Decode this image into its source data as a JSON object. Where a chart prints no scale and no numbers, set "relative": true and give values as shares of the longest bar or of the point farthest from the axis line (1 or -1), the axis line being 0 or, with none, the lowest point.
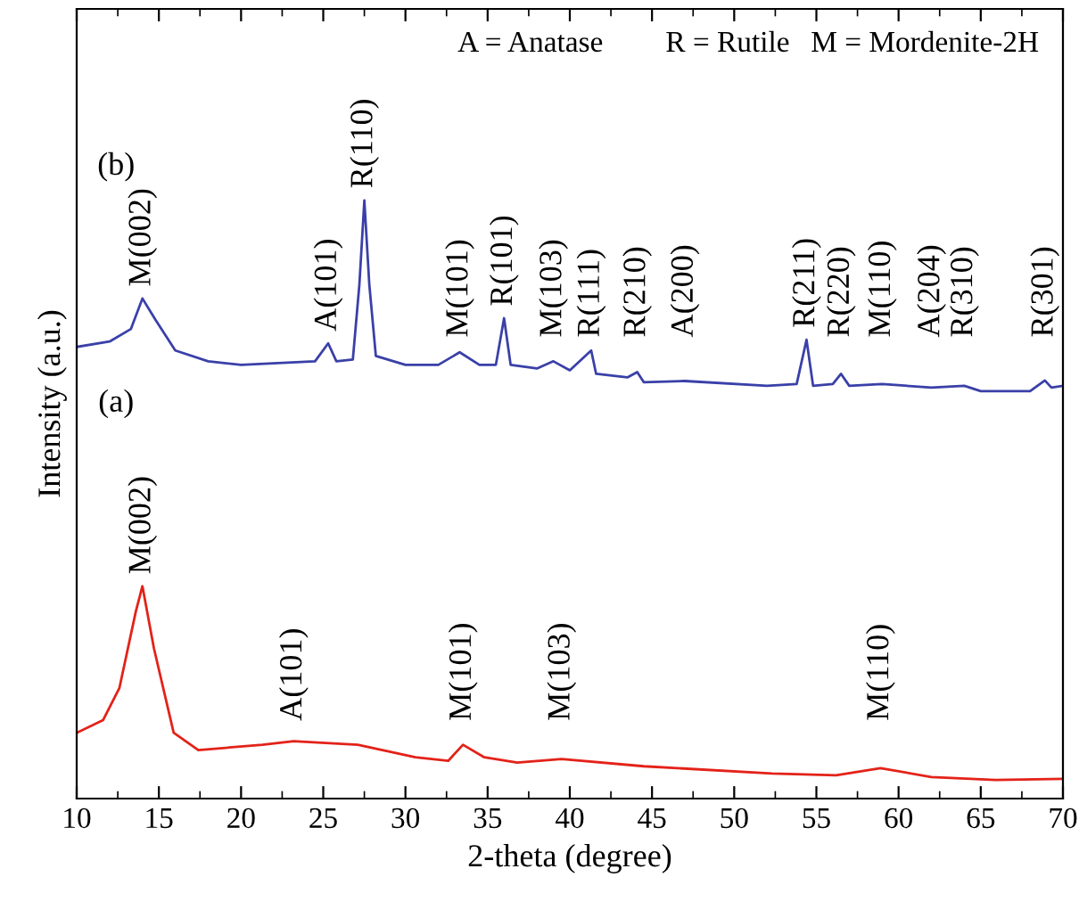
{
  "chart_data": {
    "type": "line",
    "xlabel": "2-theta (degree)",
    "ylabel": "Intensity (a.u.)",
    "relative": true,
    "xlim": [
      10,
      70
    ],
    "xticks": [
      10,
      15,
      20,
      25,
      30,
      35,
      40,
      45,
      50,
      55,
      60,
      65,
      70
    ],
    "series": [
      {
        "color": "#e32219",
        "x": [
          10,
          11.6,
          12.6,
          13.6,
          14.0,
          14.7,
          15.9,
          17.4,
          21.3,
          23.2,
          27.1,
          30.6,
          32.6,
          33.5,
          34.8,
          36.8,
          39.5,
          44.5,
          52.3,
          56.2,
          58.9,
          62,
          65.9,
          70
        ],
        "values": [
          0.11,
          0.131,
          0.185,
          0.313,
          0.355,
          0.251,
          0.11,
          0.081,
          0.09,
          0.096,
          0.09,
          0.069,
          0.063,
          0.09,
          0.069,
          0.06,
          0.066,
          0.054,
          0.042,
          0.039,
          0.051,
          0.036,
          0.031,
          0.033
        ]
      },
      {
        "color": "#3a40a8",
        "x": [
          10,
          12,
          13.3,
          14,
          14.8,
          16,
          18,
          20,
          24.5,
          25.3,
          25.8,
          26.8,
          27.2,
          27.5,
          27.8,
          28.2,
          30,
          32,
          33.3,
          34.5,
          35.5,
          36,
          36.4,
          38,
          39,
          40,
          41.3,
          41.6,
          43.5,
          44.1,
          44.5,
          47,
          52,
          53.8,
          54.4,
          54.8,
          56,
          56.5,
          57,
          59,
          62,
          64,
          65,
          68,
          68.9,
          69.3,
          70
        ],
        "values": [
          0.755,
          0.764,
          0.785,
          0.836,
          0.8,
          0.749,
          0.731,
          0.725,
          0.731,
          0.761,
          0.731,
          0.734,
          0.86,
          1.0,
          0.86,
          0.74,
          0.725,
          0.725,
          0.746,
          0.725,
          0.725,
          0.803,
          0.725,
          0.719,
          0.731,
          0.716,
          0.749,
          0.71,
          0.704,
          0.713,
          0.696,
          0.698,
          0.69,
          0.693,
          0.767,
          0.69,
          0.693,
          0.71,
          0.69,
          0.693,
          0.687,
          0.69,
          0.681,
          0.681,
          0.699,
          0.687,
          0.69
        ]
      }
    ],
    "annotations": [
      "A = Anatase",
      "R = Rutile",
      "M = Mordenite-2H",
      "(b)",
      "(a)",
      {
        "text": "M(002)",
        "x": 14.0,
        "y": 0.355
      },
      {
        "text": "A(101)",
        "x": 23.2,
        "y": 0.096
      },
      {
        "text": "M(101)",
        "x": 33.5,
        "y": 0.09
      },
      {
        "text": "M(103)",
        "x": 39.5,
        "y": 0.066
      },
      {
        "text": "M(110)",
        "x": 58.9,
        "y": 0.051
      },
      {
        "text": "M(002)",
        "x": 14.0,
        "y": 0.836
      },
      {
        "text": "A(101)",
        "x": 25.3,
        "y": 0.761
      },
      {
        "text": "R(110)",
        "x": 27.5,
        "y": 1.0
      },
      {
        "text": "M(101)",
        "x": 33.3,
        "y": 0.746
      },
      {
        "text": "R(101)",
        "x": 36.0,
        "y": 0.803
      },
      {
        "text": "M(103)",
        "x": 39.0,
        "y": 0.731
      },
      {
        "text": "R(111)",
        "x": 41.3,
        "y": 0.749
      },
      {
        "text": "R(210)",
        "x": 44.1,
        "y": 0.713
      },
      {
        "text": "A(200)",
        "x": 47.0,
        "y": 0.698
      },
      {
        "text": "R(211)",
        "x": 54.4,
        "y": 0.767
      },
      {
        "text": "R(220)",
        "x": 56.5,
        "y": 0.71
      },
      {
        "text": "M(110)",
        "x": 59.0,
        "y": 0.693
      },
      {
        "text": "A(204)",
        "x": 62.0,
        "y": 0.687
      },
      {
        "text": "R(310)",
        "x": 64.0,
        "y": 0.69
      },
      {
        "text": "R(301)",
        "x": 68.9,
        "y": 0.699
      }
    ]
  }
}
